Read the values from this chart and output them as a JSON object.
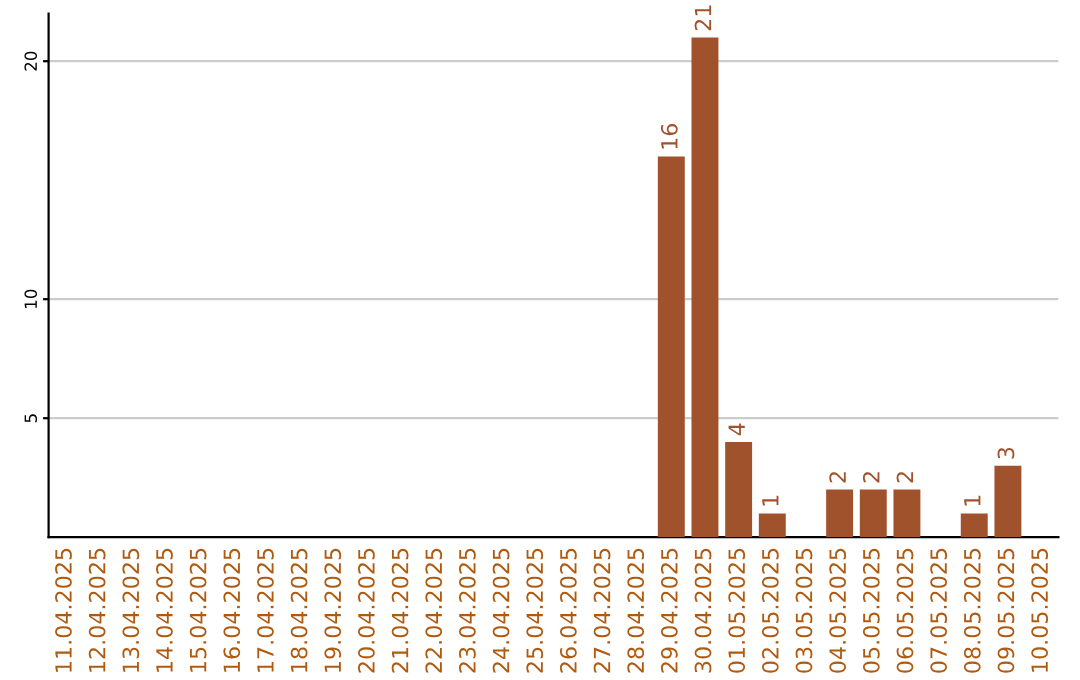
{
  "chart_data": {
    "type": "bar",
    "categories": [
      "11.04.2025",
      "12.04.2025",
      "13.04.2025",
      "14.04.2025",
      "15.04.2025",
      "16.04.2025",
      "17.04.2025",
      "18.04.2025",
      "19.04.2025",
      "20.04.2025",
      "21.04.2025",
      "22.04.2025",
      "23.04.2025",
      "24.04.2025",
      "25.04.2025",
      "26.04.2025",
      "27.04.2025",
      "28.04.2025",
      "29.04.2025",
      "30.04.2025",
      "01.05.2025",
      "02.05.2025",
      "03.05.2025",
      "04.05.2025",
      "05.05.2025",
      "06.05.2025",
      "07.05.2025",
      "08.05.2025",
      "09.05.2025",
      "10.05.2025"
    ],
    "values": [
      0,
      0,
      0,
      0,
      0,
      0,
      0,
      0,
      0,
      0,
      0,
      0,
      0,
      0,
      0,
      0,
      0,
      0,
      16,
      21,
      4,
      1,
      0,
      2,
      2,
      2,
      0,
      1,
      3,
      0
    ],
    "value_labels": [
      null,
      null,
      null,
      null,
      null,
      null,
      null,
      null,
      null,
      null,
      null,
      null,
      null,
      null,
      null,
      null,
      null,
      null,
      "16",
      "21",
      "4",
      "1",
      null,
      "2",
      "2",
      "2",
      null,
      "1",
      "3",
      null
    ],
    "color": "#a0522d",
    "ylim": [
      0,
      22
    ],
    "yticks": [
      5,
      10,
      20
    ],
    "grid": "y"
  }
}
